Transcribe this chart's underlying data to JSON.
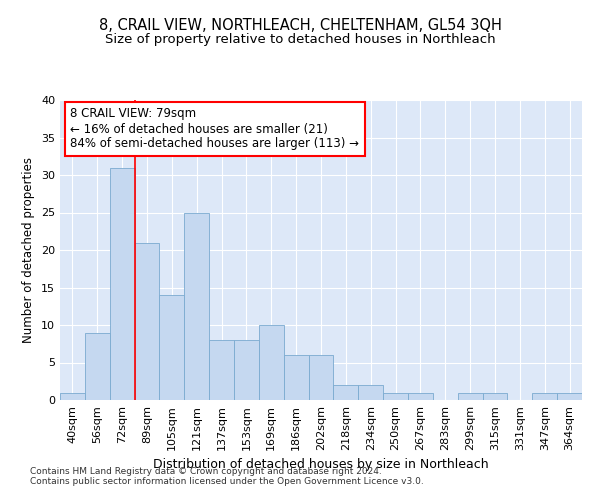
{
  "title": "8, CRAIL VIEW, NORTHLEACH, CHELTENHAM, GL54 3QH",
  "subtitle": "Size of property relative to detached houses in Northleach",
  "xlabel": "Distribution of detached houses by size in Northleach",
  "ylabel": "Number of detached properties",
  "background_color": "#dde8f8",
  "bar_color": "#c5d8f0",
  "bar_edge_color": "#7aaad0",
  "categories": [
    "40sqm",
    "56sqm",
    "72sqm",
    "89sqm",
    "105sqm",
    "121sqm",
    "137sqm",
    "153sqm",
    "169sqm",
    "186sqm",
    "202sqm",
    "218sqm",
    "234sqm",
    "250sqm",
    "267sqm",
    "283sqm",
    "299sqm",
    "315sqm",
    "331sqm",
    "347sqm",
    "364sqm"
  ],
  "values": [
    1,
    9,
    31,
    21,
    14,
    25,
    8,
    8,
    10,
    6,
    6,
    2,
    2,
    1,
    1,
    0,
    1,
    1,
    0,
    1,
    1
  ],
  "ylim": [
    0,
    40
  ],
  "yticks": [
    0,
    5,
    10,
    15,
    20,
    25,
    30,
    35,
    40
  ],
  "red_line_x": 2.5,
  "annotation_text": "8 CRAIL VIEW: 79sqm\n← 16% of detached houses are smaller (21)\n84% of semi-detached houses are larger (113) →",
  "footer_line1": "Contains HM Land Registry data © Crown copyright and database right 2024.",
  "footer_line2": "Contains public sector information licensed under the Open Government Licence v3.0.",
  "title_fontsize": 10.5,
  "subtitle_fontsize": 9.5,
  "xlabel_fontsize": 9,
  "ylabel_fontsize": 8.5,
  "tick_fontsize": 8,
  "annotation_fontsize": 8.5,
  "footer_fontsize": 6.5
}
